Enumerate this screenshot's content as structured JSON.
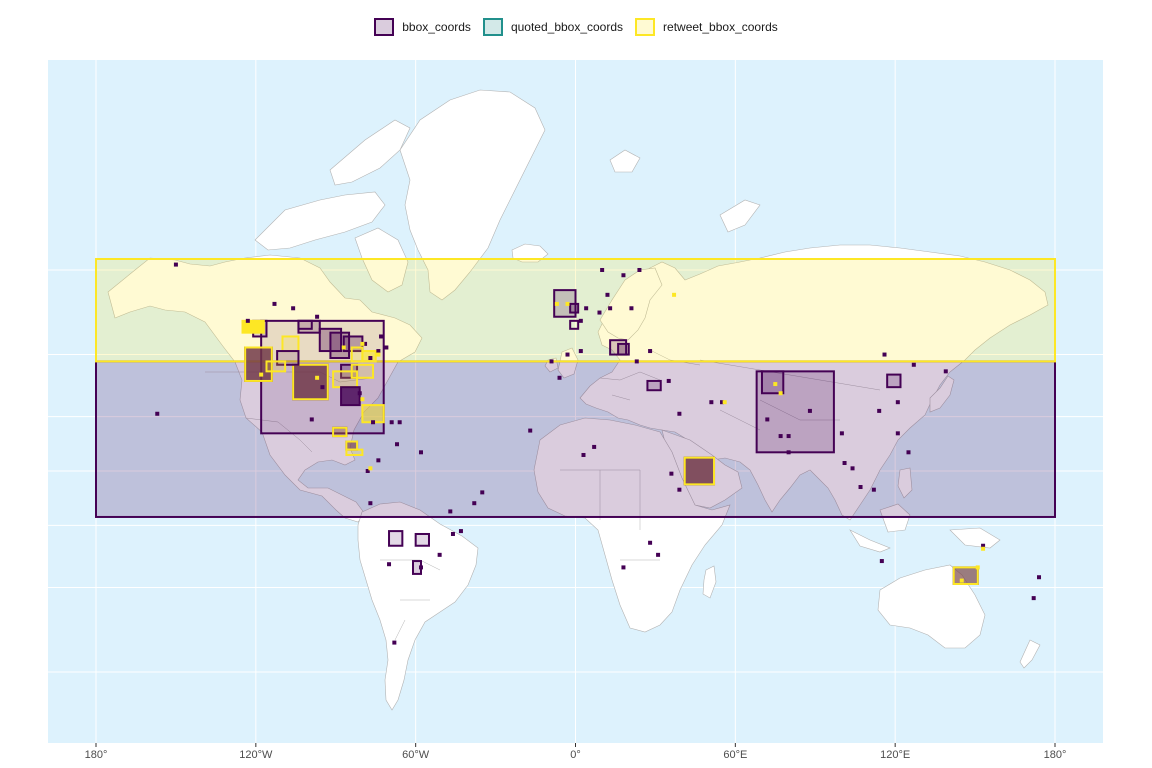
{
  "chart_data": {
    "type": "map",
    "title": "",
    "xlabel": "",
    "ylabel": "",
    "legend_position": "top",
    "xlim": [
      -180,
      180
    ],
    "x_ticks": [
      -180,
      -120,
      -60,
      0,
      60,
      120,
      180
    ],
    "x_tick_labels": [
      "180°",
      "120°W",
      "60°W",
      "0°",
      "60°E",
      "120°E",
      "180°"
    ],
    "y_gridlines_lat": [
      -60,
      -40,
      -20,
      0,
      20,
      40,
      60
    ],
    "series": [
      {
        "name": "bbox_coords",
        "stroke": "#440154",
        "fill": "#440154",
        "fill_opacity": 0.2
      },
      {
        "name": "quoted_bbox_coords",
        "stroke": "#21908C",
        "fill": "#21908C",
        "fill_opacity": 0.2
      },
      {
        "name": "retweet_bbox_coords",
        "stroke": "#FDE725",
        "fill": "#FDE725",
        "fill_opacity": 0.2
      }
    ],
    "boxes": [
      {
        "series": 0,
        "lon": [
          -180,
          180
        ],
        "lat": [
          -17,
          38
        ],
        "note": "antimeridian-spanning bbox"
      },
      {
        "series": 2,
        "lon": [
          -180,
          180
        ],
        "lat": [
          38,
          62
        ],
        "note": "antimeridian-spanning bbox"
      },
      {
        "series": 0,
        "lon": [
          -118,
          -72
        ],
        "lat": [
          14,
          49
        ],
        "op": 0.12
      },
      {
        "series": 0,
        "lon": [
          68,
          97
        ],
        "lat": [
          7,
          35
        ]
      },
      {
        "series": 0,
        "lon": [
          70,
          78
        ],
        "lat": [
          28,
          35
        ]
      },
      {
        "series": 0,
        "lon": [
          -106,
          -93
        ],
        "lat": [
          26,
          37
        ],
        "op": 0.8
      },
      {
        "series": 2,
        "lon": [
          -106,
          -93
        ],
        "lat": [
          26,
          37
        ]
      },
      {
        "series": 0,
        "lon": [
          -124,
          -114
        ],
        "lat": [
          32,
          42
        ],
        "op": 0.8
      },
      {
        "series": 2,
        "lon": [
          -124,
          -114
        ],
        "lat": [
          32,
          42
        ]
      },
      {
        "series": 0,
        "lon": [
          -96,
          -88
        ],
        "lat": [
          41,
          47
        ],
        "op": 0.3
      },
      {
        "series": 0,
        "lon": [
          -92,
          -85
        ],
        "lat": [
          39,
          46
        ],
        "op": 0.3
      },
      {
        "series": 0,
        "lon": [
          -87,
          -80
        ],
        "lat": [
          41,
          45
        ],
        "op": 0.3
      },
      {
        "series": 0,
        "lon": [
          -104,
          -96
        ],
        "lat": [
          46,
          49
        ]
      },
      {
        "series": 0,
        "lon": [
          -121,
          -116
        ],
        "lat": [
          45,
          49
        ],
        "op": 0.15
      },
      {
        "series": 2,
        "lon": [
          -125,
          -117
        ],
        "lat": [
          46,
          49
        ],
        "op": 1.0
      },
      {
        "series": 2,
        "lon": [
          -110,
          -104
        ],
        "lat": [
          41,
          45
        ]
      },
      {
        "series": 0,
        "lon": [
          -112,
          -104
        ],
        "lat": [
          37,
          41
        ],
        "op": 0.15
      },
      {
        "series": 2,
        "lon": [
          -116,
          -109
        ],
        "lat": [
          35,
          38
        ]
      },
      {
        "series": 0,
        "lon": [
          -88,
          -82
        ],
        "lat": [
          33,
          37
        ],
        "op": 0.3
      },
      {
        "series": 2,
        "lon": [
          -91,
          -82
        ],
        "lat": [
          30,
          35
        ]
      },
      {
        "series": 2,
        "lon": [
          -84,
          -76
        ],
        "lat": [
          33,
          37
        ]
      },
      {
        "series": 2,
        "lon": [
          -80,
          -75
        ],
        "lat": [
          38,
          41
        ],
        "op": 0.6
      },
      {
        "series": 2,
        "lon": [
          -84,
          -80
        ],
        "lat": [
          38,
          42
        ]
      },
      {
        "series": 0,
        "lon": [
          -88,
          -81
        ],
        "lat": [
          24,
          30
        ],
        "op": 0.8
      },
      {
        "series": 2,
        "lon": [
          -80,
          -72
        ],
        "lat": [
          18,
          24
        ],
        "op": 0.5
      },
      {
        "series": 0,
        "lon": [
          -91,
          -86
        ],
        "lat": [
          13,
          16
        ],
        "op": 0.3
      },
      {
        "series": 2,
        "lon": [
          -91,
          -86
        ],
        "lat": [
          13,
          16
        ]
      },
      {
        "series": 0,
        "lon": [
          -86,
          -82
        ],
        "lat": [
          8,
          11
        ],
        "op": 0.6
      },
      {
        "series": 2,
        "lon": [
          -86,
          -82
        ],
        "lat": [
          8,
          11
        ]
      },
      {
        "series": 2,
        "lon": [
          -86,
          -80
        ],
        "lat": [
          6,
          8
        ]
      },
      {
        "series": 0,
        "lon": [
          -8,
          0
        ],
        "lat": [
          50,
          56
        ]
      },
      {
        "series": 0,
        "lon": [
          -2,
          1
        ],
        "lat": [
          51,
          53
        ],
        "op": 0.3
      },
      {
        "series": 0,
        "lon": [
          13,
          19
        ],
        "lat": [
          40,
          44
        ]
      },
      {
        "series": 0,
        "lon": [
          16,
          20
        ],
        "lat": [
          40,
          43
        ],
        "op": 0.3
      },
      {
        "series": 0,
        "lon": [
          27,
          32
        ],
        "lat": [
          29,
          32
        ]
      },
      {
        "series": 0,
        "lon": [
          117,
          122
        ],
        "lat": [
          30,
          34
        ],
        "op": 0.2
      },
      {
        "series": 0,
        "lon": [
          41,
          52
        ],
        "lat": [
          -5,
          5
        ],
        "op": 0.8
      },
      {
        "series": 2,
        "lon": [
          41,
          52
        ],
        "lat": [
          -5,
          5
        ]
      },
      {
        "series": 0,
        "lon": [
          142,
          151
        ],
        "lat": [
          -39,
          -34
        ],
        "op": 0.6
      },
      {
        "series": 2,
        "lon": [
          142,
          151
        ],
        "lat": [
          -39,
          -34
        ]
      },
      {
        "series": 0,
        "lon": [
          -70,
          -65
        ],
        "lat": [
          -27,
          -22
        ],
        "op": 0.15
      },
      {
        "series": 0,
        "lon": [
          -60,
          -55
        ],
        "lat": [
          -27,
          -23
        ],
        "op": 0.15
      },
      {
        "series": 0,
        "lon": [
          -61,
          -58
        ],
        "lat": [
          -36,
          -32
        ]
      },
      {
        "series": 0,
        "lon": [
          -104,
          -99
        ],
        "lat": [
          47,
          49
        ],
        "op": 0.0
      },
      {
        "series": 0,
        "lon": [
          -2,
          1
        ],
        "lat": [
          47,
          49
        ],
        "op": 0.0
      }
    ],
    "points": [
      {
        "series": 0,
        "lon": -150,
        "lat": 61
      },
      {
        "series": 0,
        "lon": -113,
        "lat": 53
      },
      {
        "series": 0,
        "lon": -123,
        "lat": 49
      },
      {
        "series": 0,
        "lon": -106,
        "lat": 52
      },
      {
        "series": 0,
        "lon": -97,
        "lat": 50
      },
      {
        "series": 0,
        "lon": -79,
        "lat": 43
      },
      {
        "series": 0,
        "lon": -73,
        "lat": 45
      },
      {
        "series": 0,
        "lon": -71,
        "lat": 42
      },
      {
        "series": 0,
        "lon": -74,
        "lat": 41
      },
      {
        "series": 0,
        "lon": -77,
        "lat": 39
      },
      {
        "series": 0,
        "lon": -81,
        "lat": 28
      },
      {
        "series": 0,
        "lon": -95,
        "lat": 30
      },
      {
        "series": 0,
        "lon": -99,
        "lat": 19
      },
      {
        "series": 0,
        "lon": -66,
        "lat": 18
      },
      {
        "series": 0,
        "lon": -69,
        "lat": 18
      },
      {
        "series": 0,
        "lon": -76,
        "lat": 18
      },
      {
        "series": 0,
        "lon": -74,
        "lat": 4
      },
      {
        "series": 0,
        "lon": -67,
        "lat": 10
      },
      {
        "series": 0,
        "lon": -58,
        "lat": 7
      },
      {
        "series": 0,
        "lon": -78,
        "lat": 0
      },
      {
        "series": 0,
        "lon": -77,
        "lat": -12
      },
      {
        "series": 0,
        "lon": -47,
        "lat": -15
      },
      {
        "series": 0,
        "lon": -43,
        "lat": -22
      },
      {
        "series": 0,
        "lon": -46,
        "lat": -23
      },
      {
        "series": 0,
        "lon": -51,
        "lat": -30
      },
      {
        "series": 0,
        "lon": -70,
        "lat": -33
      },
      {
        "series": 0,
        "lon": -58,
        "lat": -34
      },
      {
        "series": 0,
        "lon": -68,
        "lat": -54
      },
      {
        "series": 0,
        "lon": -35,
        "lat": -8
      },
      {
        "series": 0,
        "lon": -38,
        "lat": -12
      },
      {
        "series": 0,
        "lon": -9,
        "lat": 38
      },
      {
        "series": 0,
        "lon": -3,
        "lat": 40
      },
      {
        "series": 0,
        "lon": 2,
        "lat": 41
      },
      {
        "series": 0,
        "lon": 4,
        "lat": 52
      },
      {
        "series": 0,
        "lon": 2,
        "lat": 49
      },
      {
        "series": 0,
        "lon": 9,
        "lat": 51
      },
      {
        "series": 0,
        "lon": 13,
        "lat": 52
      },
      {
        "series": 0,
        "lon": 21,
        "lat": 52
      },
      {
        "series": 0,
        "lon": 18,
        "lat": 59
      },
      {
        "series": 0,
        "lon": 24,
        "lat": 60
      },
      {
        "series": 0,
        "lon": 10,
        "lat": 60
      },
      {
        "series": 0,
        "lon": 12,
        "lat": 55
      },
      {
        "series": 0,
        "lon": 23,
        "lat": 38
      },
      {
        "series": 0,
        "lon": 28,
        "lat": 41
      },
      {
        "series": 0,
        "lon": 35,
        "lat": 32
      },
      {
        "series": 0,
        "lon": 39,
        "lat": 21
      },
      {
        "series": 0,
        "lon": 55,
        "lat": 25
      },
      {
        "series": 0,
        "lon": 51,
        "lat": 25
      },
      {
        "series": 0,
        "lon": 3,
        "lat": 6
      },
      {
        "series": 0,
        "lon": -17,
        "lat": 15
      },
      {
        "series": 0,
        "lon": 7,
        "lat": 9
      },
      {
        "series": 0,
        "lon": 36,
        "lat": -1
      },
      {
        "series": 0,
        "lon": 39,
        "lat": -7
      },
      {
        "series": 0,
        "lon": 28,
        "lat": -26
      },
      {
        "series": 0,
        "lon": 18,
        "lat": -34
      },
      {
        "series": 0,
        "lon": 31,
        "lat": -30
      },
      {
        "series": 0,
        "lon": 72,
        "lat": 19
      },
      {
        "series": 0,
        "lon": 77,
        "lat": 13
      },
      {
        "series": 0,
        "lon": 80,
        "lat": 13
      },
      {
        "series": 0,
        "lon": 88,
        "lat": 22
      },
      {
        "series": 0,
        "lon": 80,
        "lat": 7
      },
      {
        "series": 0,
        "lon": 100,
        "lat": 14
      },
      {
        "series": 0,
        "lon": 101,
        "lat": 3
      },
      {
        "series": 0,
        "lon": 104,
        "lat": 1
      },
      {
        "series": 0,
        "lon": 107,
        "lat": -6
      },
      {
        "series": 0,
        "lon": 112,
        "lat": -7
      },
      {
        "series": 0,
        "lon": 121,
        "lat": 14
      },
      {
        "series": 0,
        "lon": 125,
        "lat": 7
      },
      {
        "series": 0,
        "lon": 114,
        "lat": 22
      },
      {
        "series": 0,
        "lon": 116,
        "lat": 40
      },
      {
        "series": 0,
        "lon": 121,
        "lat": 25
      },
      {
        "series": 0,
        "lon": 127,
        "lat": 37
      },
      {
        "series": 0,
        "lon": 139,
        "lat": 35
      },
      {
        "series": 0,
        "lon": 115,
        "lat": -32
      },
      {
        "series": 0,
        "lon": 153,
        "lat": -27
      },
      {
        "series": 0,
        "lon": 174,
        "lat": -37
      },
      {
        "series": 0,
        "lon": 172,
        "lat": -43
      },
      {
        "series": 0,
        "lon": -157,
        "lat": 21
      },
      {
        "series": 0,
        "lon": -6,
        "lat": 33
      },
      {
        "series": 2,
        "lon": 37,
        "lat": 55
      },
      {
        "series": 2,
        "lon": 56,
        "lat": 25
      },
      {
        "series": 2,
        "lon": 153,
        "lat": -28
      },
      {
        "series": 2,
        "lon": -80,
        "lat": 43
      },
      {
        "series": 2,
        "lon": -74,
        "lat": 40
      },
      {
        "series": 2,
        "lon": -87,
        "lat": 42
      },
      {
        "series": 2,
        "lon": -118,
        "lat": 34
      },
      {
        "series": 2,
        "lon": -97,
        "lat": 33
      },
      {
        "series": 2,
        "lon": -80,
        "lat": 26
      },
      {
        "series": 2,
        "lon": -77,
        "lat": 1
      },
      {
        "series": 2,
        "lon": 75,
        "lat": 31
      },
      {
        "series": 2,
        "lon": 77,
        "lat": 28
      },
      {
        "series": 2,
        "lon": 151,
        "lat": -34
      },
      {
        "series": 2,
        "lon": 145,
        "lat": -38
      },
      {
        "series": 2,
        "lon": -7,
        "lat": 53
      },
      {
        "series": 2,
        "lon": -3,
        "lat": 53
      }
    ]
  },
  "legend": {
    "items": [
      {
        "label": "bbox_coords",
        "stroke": "#440154",
        "fill": "rgba(68,1,84,0.2)"
      },
      {
        "label": "quoted_bbox_coords",
        "stroke": "#21908C",
        "fill": "rgba(33,144,140,0.2)"
      },
      {
        "label": "retweet_bbox_coords",
        "stroke": "#FDE725",
        "fill": "rgba(253,231,37,0.2)"
      }
    ]
  },
  "colors": {
    "ocean": "#DDF2FD",
    "land": "#FFFFFF",
    "border": "#B3B3B3",
    "grid": "#FFFFFF"
  }
}
